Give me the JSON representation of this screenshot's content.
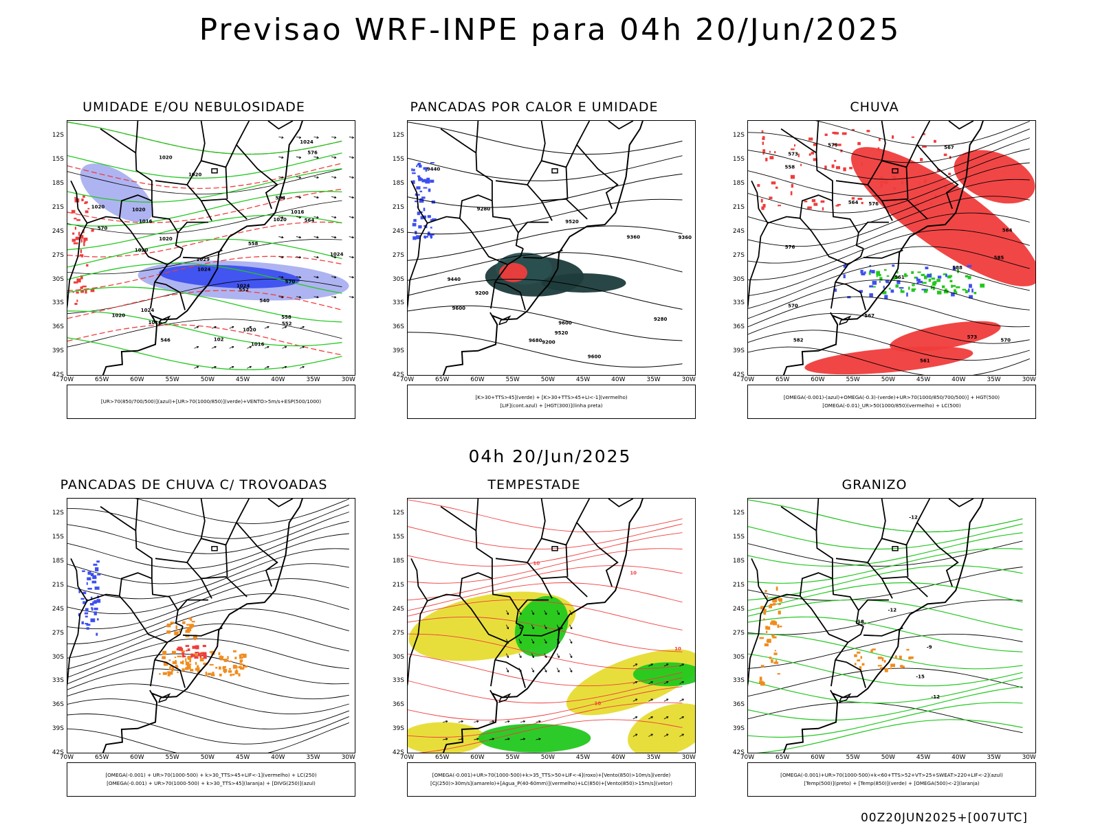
{
  "title": "Previsao WRF-INPE  para 04h 20/Jun/2025",
  "mid_time": "04h 20/Jun/2025",
  "footer": "00Z20JUN2025+[007UTC]",
  "lat_labels": [
    "12S",
    "15S",
    "18S",
    "21S",
    "24S",
    "27S",
    "30S",
    "33S",
    "36S",
    "39S",
    "42S"
  ],
  "lon_labels": [
    "70W",
    "65W",
    "60W",
    "55W",
    "50W",
    "45W",
    "40W",
    "35W",
    "30W"
  ],
  "colors": {
    "red": "#f03c3c",
    "green": "#22c81e",
    "blue": "#3c50f0",
    "lightblue": "#aab0f0",
    "darkteal": "#1e3c3c",
    "yellow": "#e6dc32",
    "orange": "#f08c1e",
    "purple": "#9650c8"
  },
  "panels": [
    {
      "title": "UMIDADE E/OU NEBULOSIDADE",
      "legend": [
        "[UR>70(850/700/500)](azul)+[UR>70(1000/850)](verde)+VENTO>5m/s+ESP(500/1000)"
      ],
      "contour_labels": [
        "1016",
        "1020",
        "1024",
        "1020",
        "1016",
        "1020",
        "1024",
        "1020",
        "1024",
        "1016",
        "1020",
        "1020",
        "1029",
        "1024",
        "1020",
        "1024",
        "570",
        "576",
        "570",
        "564",
        "558",
        "552",
        "546",
        "552",
        "558",
        "564",
        "1020",
        "1016",
        "102",
        "1020",
        "540"
      ]
    },
    {
      "title": "PANCADAS POR CALOR E UMIDADE",
      "legend": [
        "[K>30+TTS>45](verde) + [K>30+TTS>45+LI<-1](vermelho)",
        "[LIF](cont.azul) + [HGT(300)](linha preta)"
      ],
      "contour_labels": [
        "9680",
        "9600",
        "9520",
        "9440",
        "9360",
        "9600",
        "9520",
        "9440",
        "9360",
        "9280",
        "9200",
        "9280",
        "9200",
        "9600"
      ]
    },
    {
      "title": "CHUVA",
      "legend": [
        "[OMEGA(-0.001)-(azul)+OMEGA(-0.3)-(verde)+UR>70(1000/850/700/500)] + HGT(500)",
        "[OMEGA(-0.01)_UR>50(1000/850)(vermelho) + LC(500)"
      ],
      "contour_labels": [
        "588",
        "585",
        "582",
        "579",
        "576",
        "573",
        "570",
        "567",
        "564",
        "561",
        "558",
        "576",
        "573",
        "570",
        "567",
        "564",
        "561"
      ]
    },
    {
      "title": "PANCADAS DE CHUVA C/ TROVOADAS",
      "legend": [
        "[OMEGA(-0.001) + UR>70(1000-500) + k>30_TTS>45+LIF<-1](vermelho) + LC(250)",
        "[OMEGA(-0.001) + UR>70(1000-500) + k>30_TTS>45](laranja) + [DIVG(250)](azul)"
      ],
      "contour_labels": []
    },
    {
      "title": "TEMPESTADE",
      "legend": [
        "[OMEGA(-0.001)+UR>70(1000-500)+k>35_TTS>50+LIF<-4](roxo)+[Vento(850)>10m/s](verde)",
        "[CJ(250)>30m/s](amarelo)+[Agua_P(40-60mm)](vermelho)+LC(850)+[Vento(850)>15m/s](vetor)"
      ],
      "contour_labels": [
        "10",
        "10",
        "10",
        "10"
      ]
    },
    {
      "title": "GRANIZO",
      "legend": [
        "[OMEGA(-0.001)+UR>70(1000-500)+k<60+TTS>52+VT>25+SWEAT>220+LIF<-2](azul)",
        "[Temp(500)](preto) + [Temp(850)](verde) + [OMEGA(500)<-2](laranja)"
      ],
      "contour_labels": [
        "-12",
        "-12",
        "-12",
        "-15",
        "-18",
        "-9"
      ]
    }
  ]
}
